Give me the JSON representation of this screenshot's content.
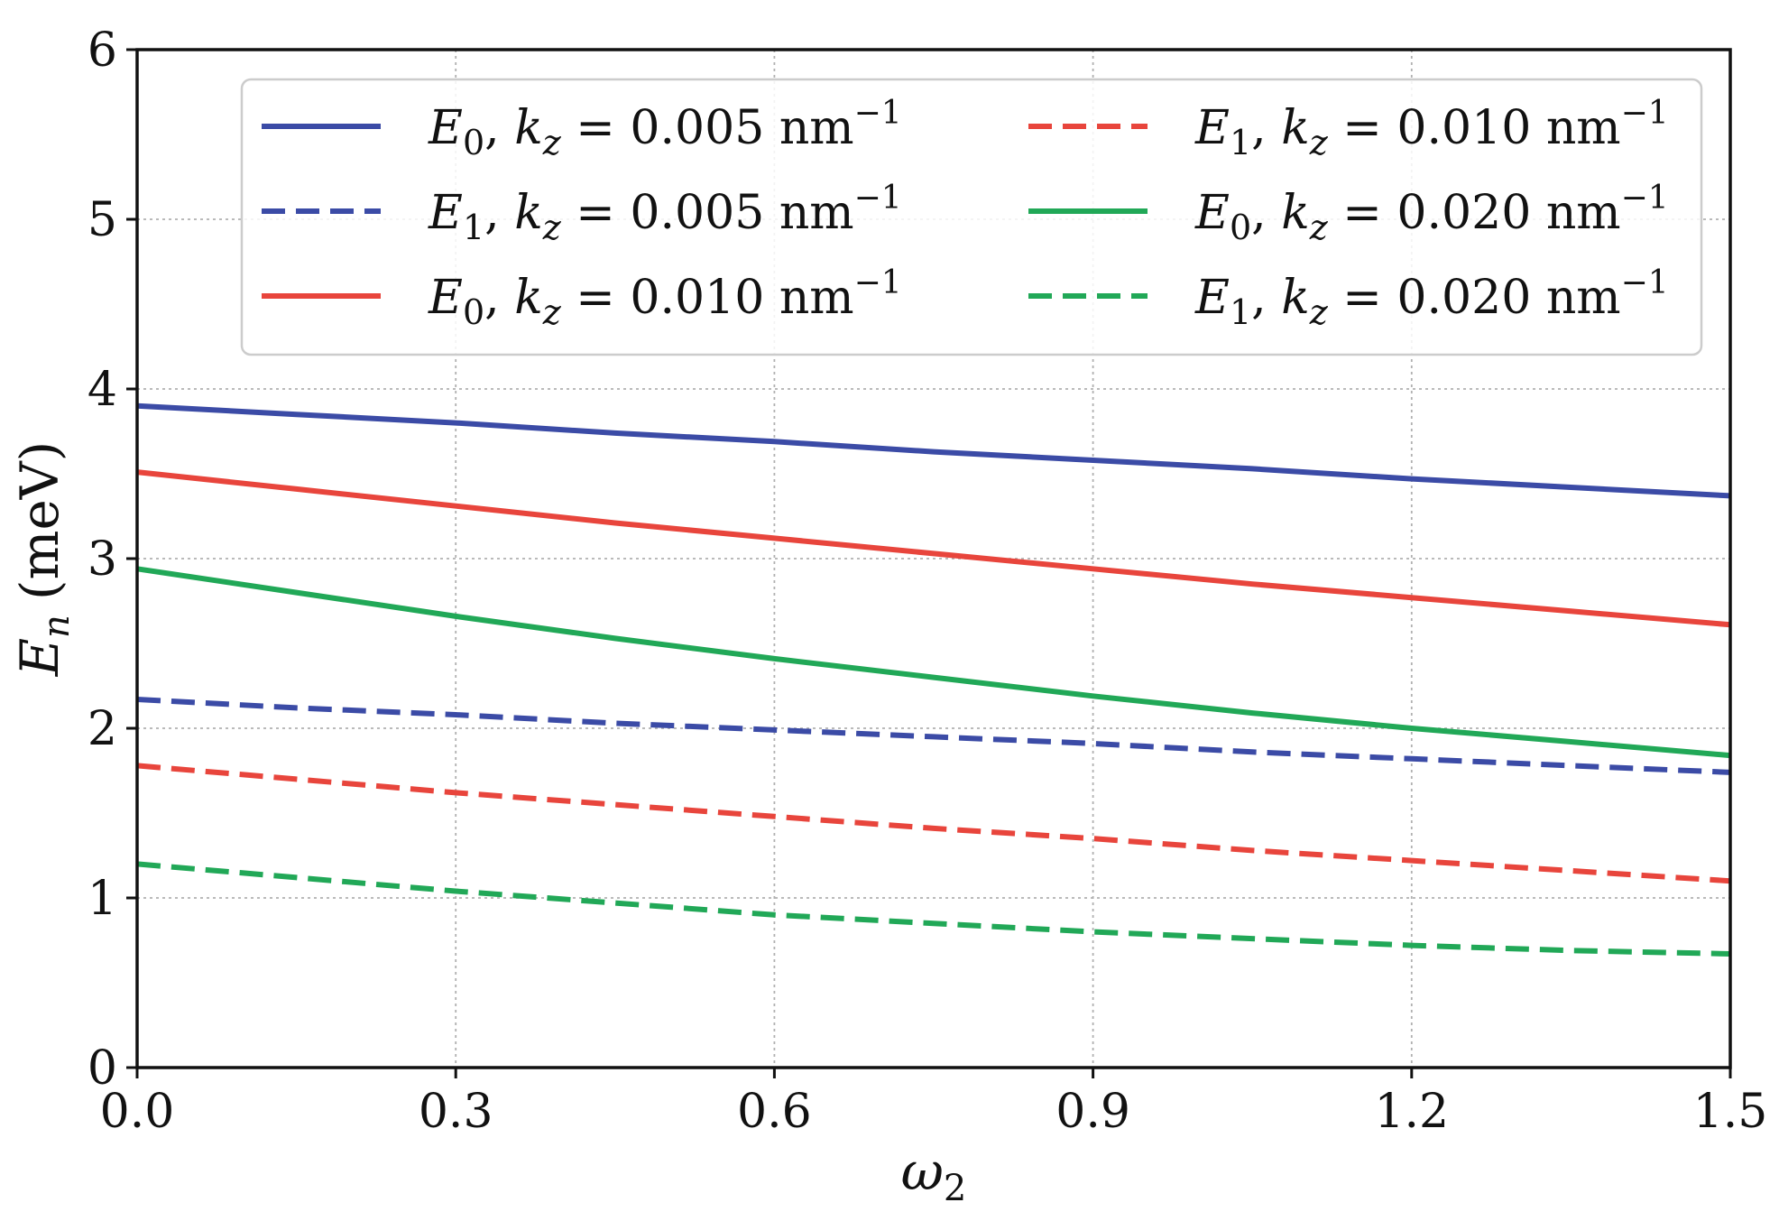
{
  "chart_data": {
    "type": "line",
    "title": "",
    "xlabel": {
      "base": "ω",
      "sub": "2"
    },
    "ylabel": {
      "base": "E",
      "sub": "n",
      "unit": "(meV)"
    },
    "xlim": [
      0.0,
      1.5
    ],
    "ylim": [
      0,
      6
    ],
    "xticks": [
      "0.0",
      "0.3",
      "0.6",
      "0.9",
      "1.2",
      "1.5"
    ],
    "yticks": [
      "0",
      "1",
      "2",
      "3",
      "4",
      "5",
      "6"
    ],
    "grid": true,
    "legend_position": "top-right",
    "x": [
      0.0,
      0.15,
      0.3,
      0.45,
      0.6,
      0.75,
      0.9,
      1.05,
      1.2,
      1.35,
      1.5
    ],
    "series": [
      {
        "name": "E0, kz = 0.005 nm-1",
        "E": "E",
        "n": "0",
        "kz": "0.005",
        "unit": "nm",
        "exp": "−1",
        "color": "#3b4ba6",
        "style": "solid",
        "values": [
          3.9,
          3.85,
          3.8,
          3.74,
          3.69,
          3.63,
          3.58,
          3.53,
          3.47,
          3.42,
          3.37
        ]
      },
      {
        "name": "E1, kz = 0.005 nm-1",
        "E": "E",
        "n": "1",
        "kz": "0.005",
        "unit": "nm",
        "exp": "−1",
        "color": "#3b4ba6",
        "style": "dashed",
        "values": [
          2.17,
          2.12,
          2.08,
          2.03,
          1.99,
          1.95,
          1.91,
          1.86,
          1.82,
          1.78,
          1.74
        ]
      },
      {
        "name": "E0, kz = 0.010 nm-1",
        "E": "E",
        "n": "0",
        "kz": "0.010",
        "unit": "nm",
        "exp": "−1",
        "color": "#e8453c",
        "style": "solid",
        "values": [
          3.51,
          3.41,
          3.31,
          3.21,
          3.12,
          3.03,
          2.94,
          2.85,
          2.77,
          2.69,
          2.61
        ]
      },
      {
        "name": "E1, kz = 0.010 nm-1",
        "E": "E",
        "n": "1",
        "kz": "0.010",
        "unit": "nm",
        "exp": "−1",
        "color": "#e8453c",
        "style": "dashed",
        "values": [
          1.78,
          1.7,
          1.62,
          1.55,
          1.48,
          1.41,
          1.35,
          1.28,
          1.22,
          1.16,
          1.1
        ]
      },
      {
        "name": "E0, kz = 0.020 nm-1",
        "E": "E",
        "n": "0",
        "kz": "0.020",
        "unit": "nm",
        "exp": "−1",
        "color": "#21a857",
        "style": "solid",
        "values": [
          2.94,
          2.8,
          2.66,
          2.53,
          2.41,
          2.3,
          2.19,
          2.09,
          2.0,
          1.92,
          1.84
        ]
      },
      {
        "name": "E1, kz = 0.020 nm-1",
        "E": "E",
        "n": "1",
        "kz": "0.020",
        "unit": "nm",
        "exp": "−1",
        "color": "#21a857",
        "style": "dashed",
        "values": [
          1.2,
          1.12,
          1.04,
          0.97,
          0.9,
          0.85,
          0.8,
          0.76,
          0.72,
          0.69,
          0.67
        ]
      }
    ]
  }
}
